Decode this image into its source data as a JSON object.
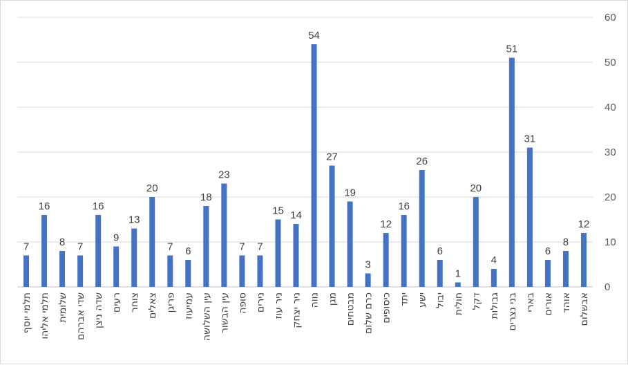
{
  "chart_data": {
    "type": "bar",
    "title": "",
    "xlabel": "",
    "ylabel": "",
    "ylim": [
      0,
      60
    ],
    "yticks": [
      0,
      10,
      20,
      30,
      40,
      50,
      60
    ],
    "y_axis_side": "right",
    "grid": true,
    "legend": "none",
    "bar_color": "#4472c4",
    "categories": [
      "תלמי יוסף",
      "תלמי אליהו",
      "שלומית",
      "שדי אברהם",
      "שדה ניצן",
      "רעים",
      "צוחר",
      "צאלים",
      "פריגן",
      "עמיעוז",
      "עין השלושה",
      "עין הבשור",
      "סופה",
      "נירים",
      "ניר עוז",
      "ניר יצחק",
      "נווה",
      "מגן",
      "מבטחים",
      "כרם שלום",
      "כיסופים",
      "יתד",
      "ישע",
      "יבול",
      "חולית",
      "דקל",
      "גבולות",
      "בני נצרים",
      "בארי",
      "אורים",
      "אוהד",
      "אבשלום"
    ],
    "values": [
      7,
      16,
      8,
      7,
      16,
      9,
      13,
      20,
      7,
      6,
      18,
      23,
      7,
      7,
      15,
      14,
      54,
      27,
      19,
      3,
      12,
      16,
      26,
      6,
      1,
      20,
      4,
      51,
      31,
      6,
      8,
      12
    ]
  }
}
